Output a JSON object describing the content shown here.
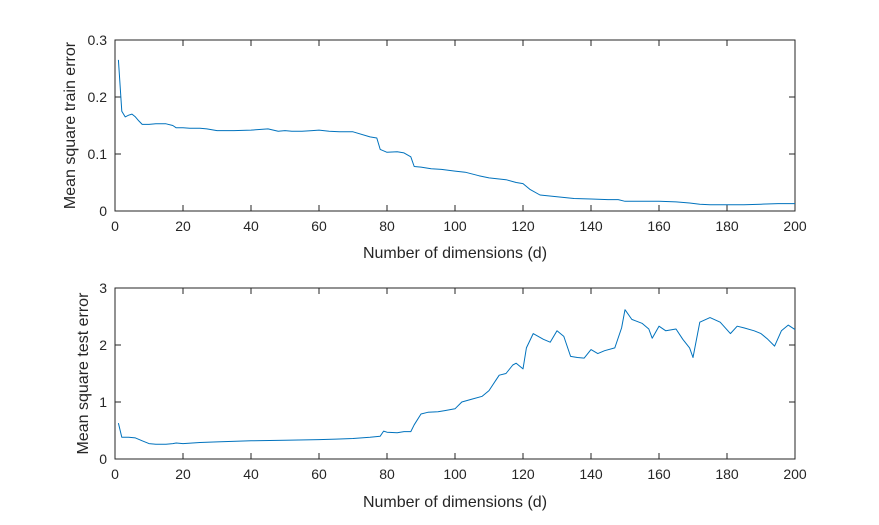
{
  "chart_data": [
    {
      "type": "line",
      "title": "",
      "xlabel": "Number of dimensions (d)",
      "ylabel": "Mean square train error",
      "xlim": [
        0,
        200
      ],
      "ylim": [
        0,
        0.3
      ],
      "xticks": [
        0,
        20,
        40,
        60,
        80,
        100,
        120,
        140,
        160,
        180,
        200
      ],
      "yticks": [
        0,
        0.1,
        0.2,
        0.3
      ],
      "xtick_labels": [
        "0",
        "20",
        "40",
        "60",
        "80",
        "100",
        "120",
        "140",
        "160",
        "180",
        "200"
      ],
      "ytick_labels": [
        "0",
        "0.1",
        "0.2",
        "0.3"
      ],
      "grid": false,
      "color": "#0072BD",
      "series": [
        {
          "x": [
            1,
            2,
            3,
            4,
            5,
            6,
            7,
            8,
            10,
            12,
            15,
            17,
            18,
            20,
            22,
            25,
            27,
            30,
            35,
            40,
            45,
            48,
            50,
            52,
            55,
            58,
            60,
            63,
            66,
            70,
            75,
            77,
            78,
            80,
            83,
            85,
            87,
            88,
            90,
            93,
            96,
            100,
            103,
            107,
            110,
            115,
            118,
            120,
            122,
            125,
            130,
            135,
            140,
            145,
            148,
            150,
            155,
            160,
            165,
            169,
            172,
            175,
            180,
            185,
            190,
            195,
            200
          ],
          "y": [
            0.265,
            0.175,
            0.165,
            0.168,
            0.17,
            0.165,
            0.158,
            0.152,
            0.152,
            0.153,
            0.153,
            0.15,
            0.146,
            0.146,
            0.145,
            0.145,
            0.144,
            0.141,
            0.141,
            0.142,
            0.144,
            0.14,
            0.141,
            0.14,
            0.14,
            0.141,
            0.142,
            0.14,
            0.139,
            0.139,
            0.13,
            0.128,
            0.108,
            0.103,
            0.104,
            0.102,
            0.095,
            0.078,
            0.077,
            0.074,
            0.073,
            0.07,
            0.068,
            0.062,
            0.058,
            0.055,
            0.05,
            0.048,
            0.038,
            0.028,
            0.025,
            0.022,
            0.021,
            0.02,
            0.02,
            0.017,
            0.017,
            0.017,
            0.016,
            0.014,
            0.012,
            0.011,
            0.011,
            0.011,
            0.012,
            0.013,
            0.013
          ]
        }
      ]
    },
    {
      "type": "line",
      "title": "",
      "xlabel": "Number of dimensions (d)",
      "ylabel": "Mean square test error",
      "xlim": [
        0,
        200
      ],
      "ylim": [
        0,
        3
      ],
      "xticks": [
        0,
        20,
        40,
        60,
        80,
        100,
        120,
        140,
        160,
        180,
        200
      ],
      "yticks": [
        0,
        1,
        2,
        3
      ],
      "xtick_labels": [
        "0",
        "20",
        "40",
        "60",
        "80",
        "100",
        "120",
        "140",
        "160",
        "180",
        "200"
      ],
      "ytick_labels": [
        "0",
        "1",
        "2",
        "3"
      ],
      "grid": false,
      "color": "#0072BD",
      "series": [
        {
          "x": [
            1,
            2,
            4,
            6,
            8,
            10,
            12,
            15,
            17,
            18,
            20,
            25,
            30,
            40,
            50,
            60,
            65,
            70,
            75,
            78,
            79,
            80,
            83,
            85,
            87,
            88,
            90,
            92,
            95,
            97,
            100,
            102,
            105,
            108,
            110,
            112,
            113,
            115,
            117,
            118,
            120,
            121,
            123,
            126,
            128,
            130,
            132,
            134,
            136,
            138,
            140,
            142,
            144,
            147,
            149,
            150,
            152,
            155,
            157,
            158,
            160,
            162,
            165,
            167,
            169,
            170,
            172,
            175,
            178,
            181,
            183,
            185,
            188,
            190,
            192,
            194,
            196,
            198,
            200
          ],
          "y": [
            0.63,
            0.38,
            0.38,
            0.37,
            0.32,
            0.27,
            0.26,
            0.26,
            0.27,
            0.28,
            0.27,
            0.29,
            0.3,
            0.32,
            0.33,
            0.34,
            0.35,
            0.36,
            0.38,
            0.4,
            0.49,
            0.47,
            0.46,
            0.48,
            0.48,
            0.6,
            0.79,
            0.82,
            0.83,
            0.85,
            0.88,
            1.0,
            1.05,
            1.1,
            1.2,
            1.38,
            1.47,
            1.5,
            1.65,
            1.68,
            1.58,
            1.95,
            2.2,
            2.1,
            2.05,
            2.25,
            2.15,
            1.8,
            1.78,
            1.77,
            1.92,
            1.85,
            1.9,
            1.95,
            2.3,
            2.62,
            2.45,
            2.38,
            2.28,
            2.12,
            2.33,
            2.25,
            2.28,
            2.1,
            1.95,
            1.78,
            2.4,
            2.48,
            2.4,
            2.2,
            2.33,
            2.3,
            2.25,
            2.2,
            2.1,
            1.98,
            2.25,
            2.35,
            2.27
          ]
        }
      ]
    }
  ]
}
